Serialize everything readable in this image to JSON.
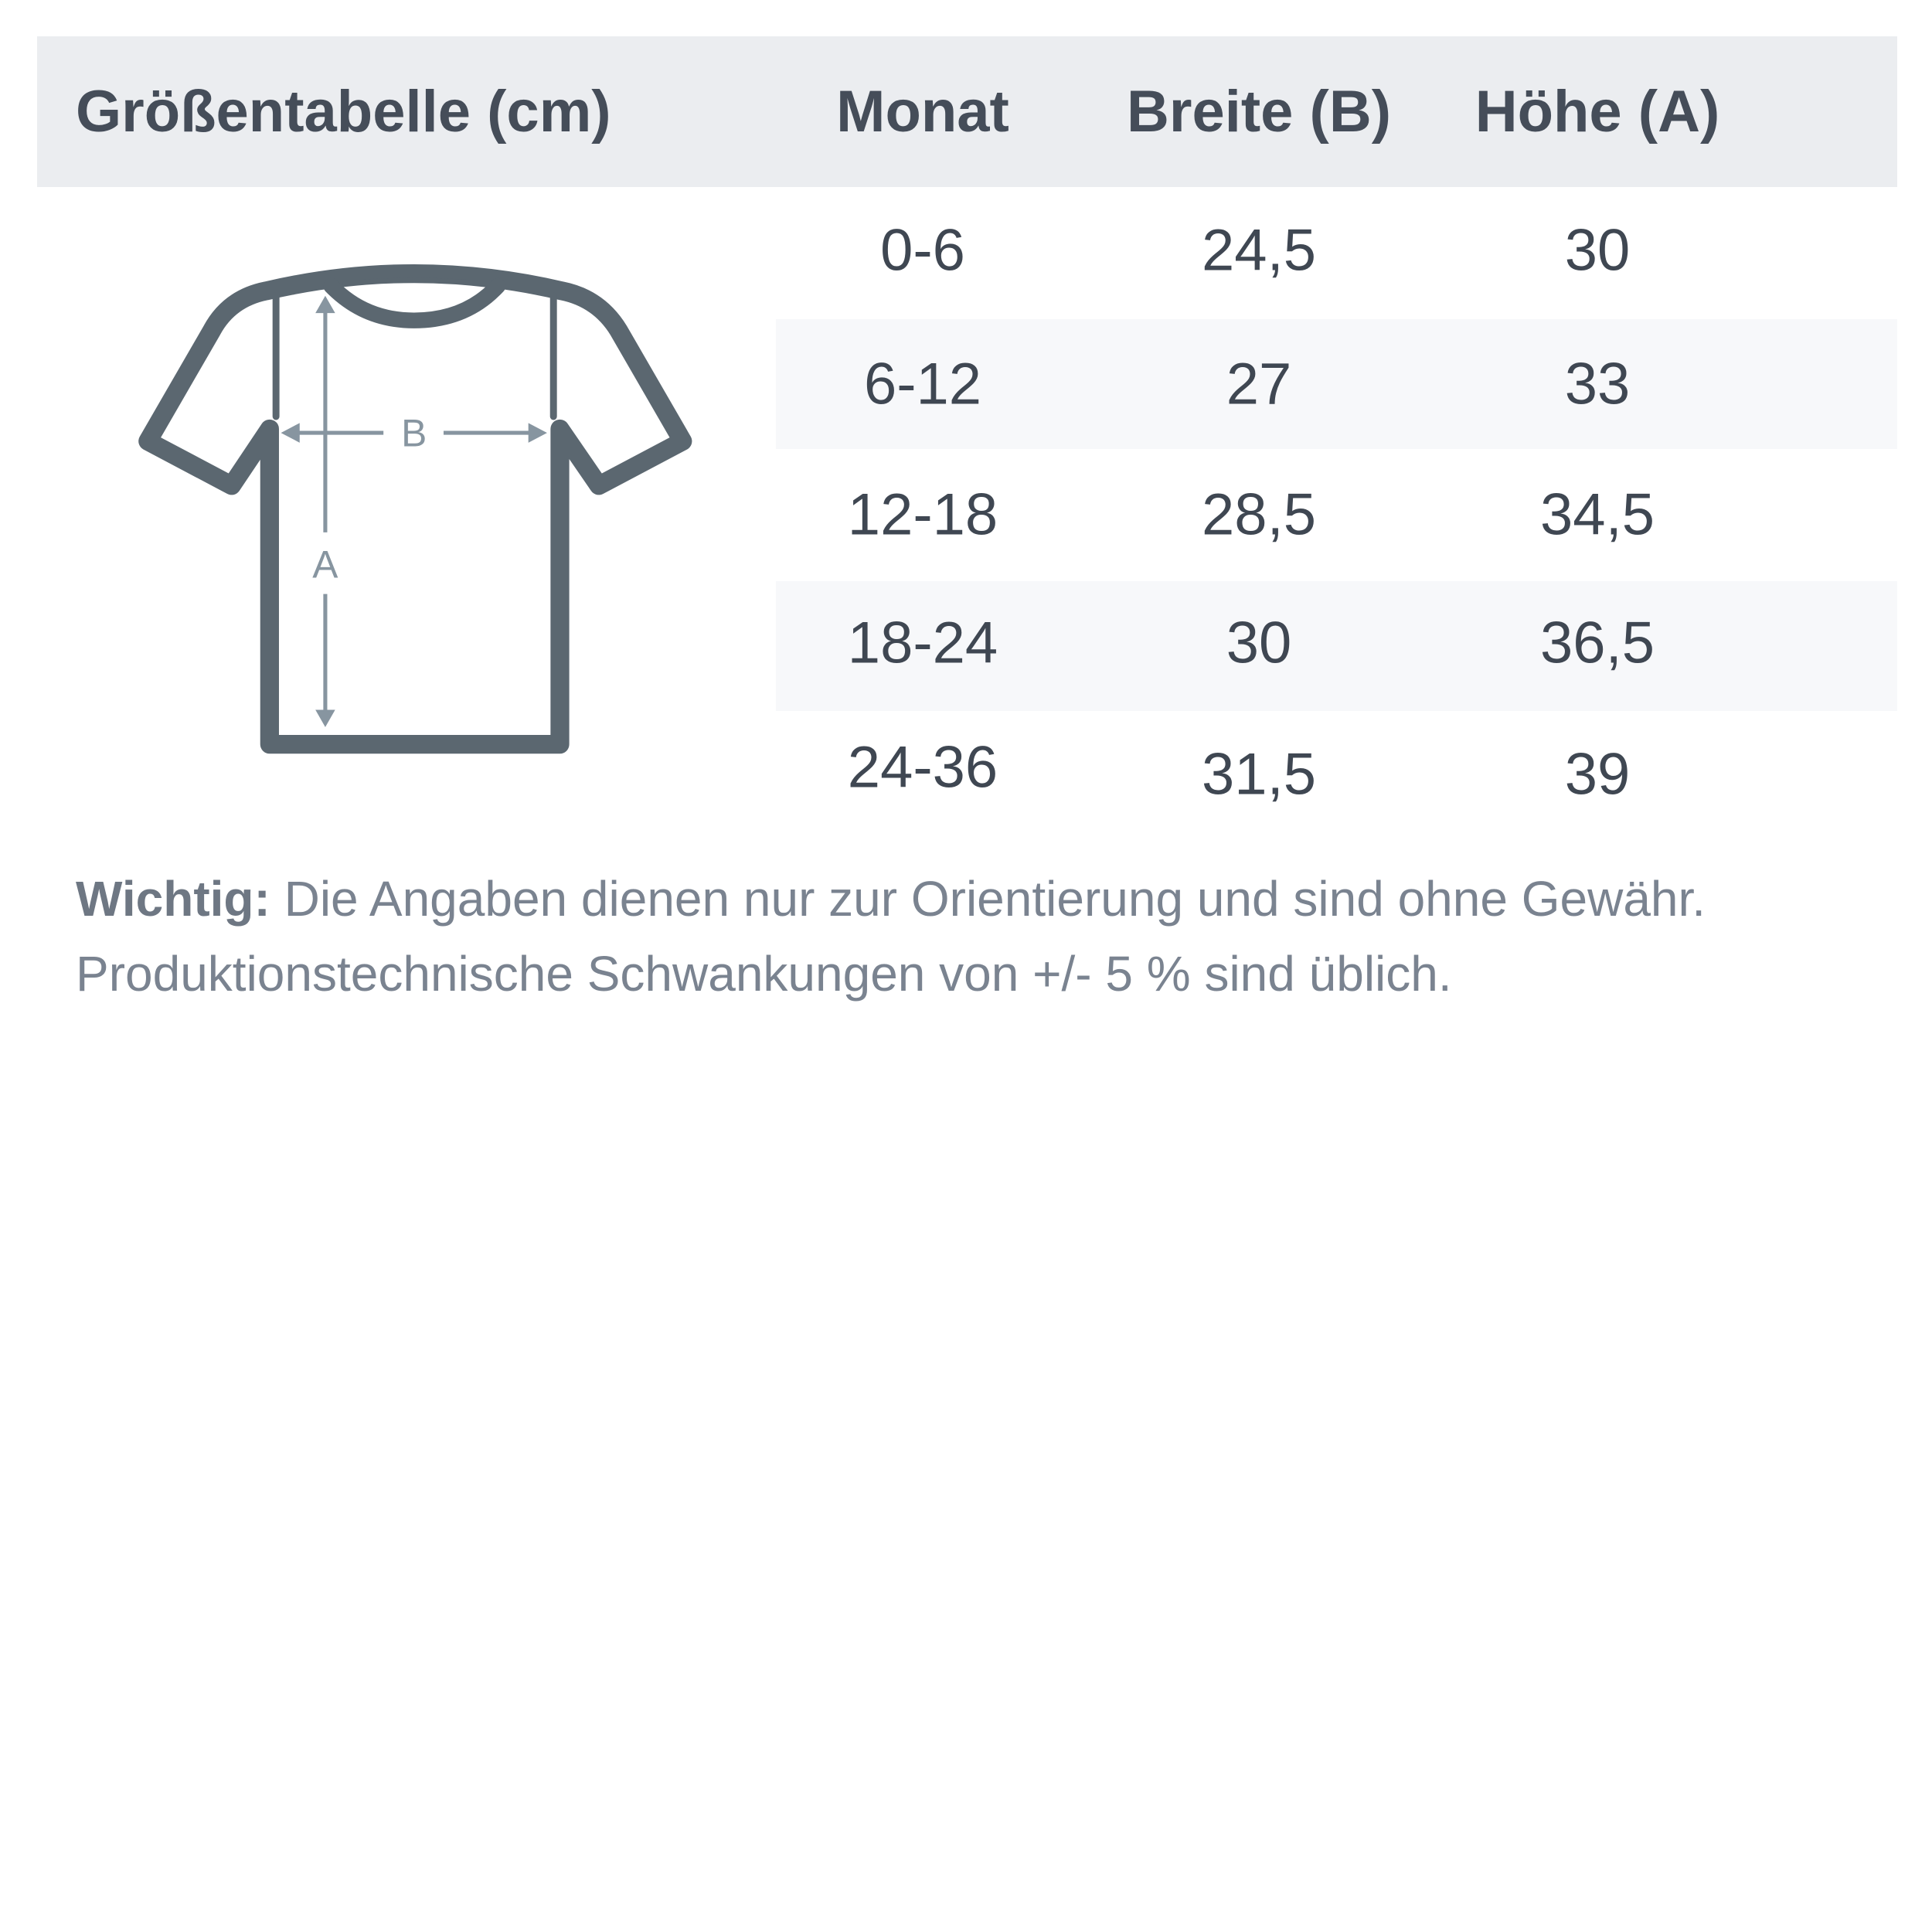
{
  "header": {
    "title": "Größentabelle (cm)",
    "columns": [
      "Monat",
      "Breite (B)",
      "Höhe (A)"
    ]
  },
  "rows": [
    [
      "0-6",
      "24,5",
      "30"
    ],
    [
      "6-12",
      "27",
      "33"
    ],
    [
      "12-18",
      "28,5",
      "34,5"
    ],
    [
      "18-24",
      "30",
      "36,5"
    ],
    [
      "24-36",
      "31,5",
      "39"
    ]
  ],
  "diagram": {
    "icon": "t-shirt-icon",
    "width_label": "B",
    "height_label": "A"
  },
  "note": {
    "label": "Wichtig:",
    "line1": "Die Angaben dienen nur zur Orientierung und sind ohne Gewähr.",
    "line2": "Produktionstechnische Schwankungen von +/- 5 % sind üblich."
  },
  "colors": {
    "header_bg": "#ebedf0",
    "stripe_bg": "#f7f8fa",
    "text": "#454d59",
    "shirt": "#5b6770",
    "arrows": "#8795a0"
  }
}
